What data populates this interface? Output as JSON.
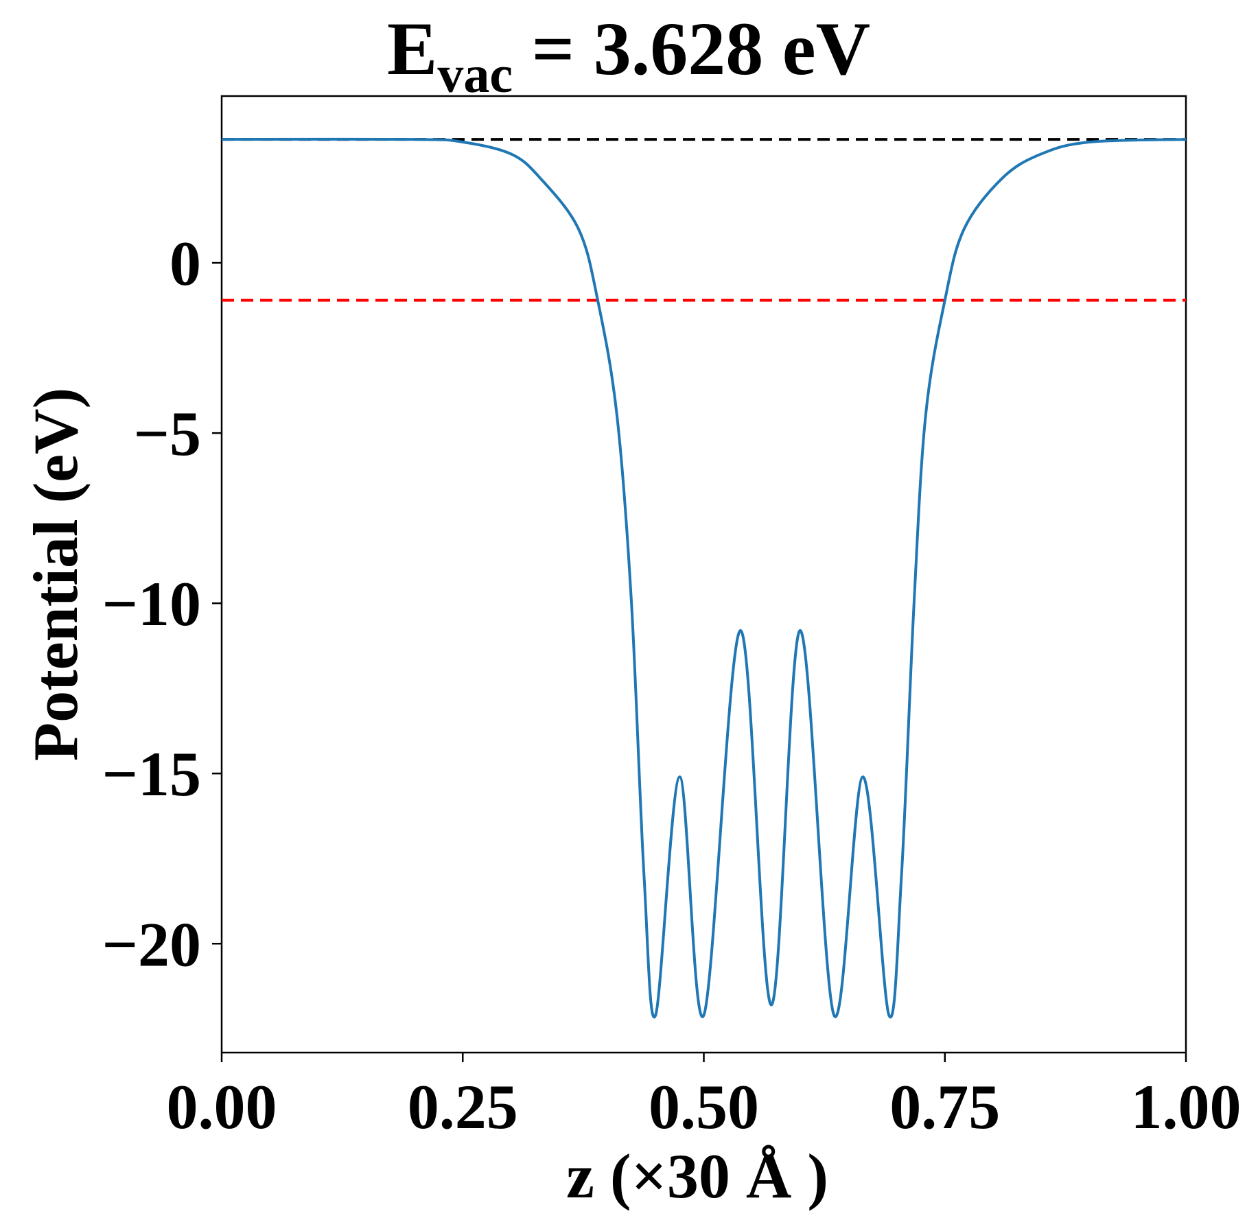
{
  "chart_data": {
    "type": "line",
    "title": {
      "prefix": "E",
      "subscript": "vac",
      "suffix": " = 3.628 eV"
    },
    "xlabel": "z (×30 Å )",
    "ylabel": "Potential (eV)",
    "xlim": [
      0,
      1
    ],
    "ylim": [
      -23.2,
      4.9
    ],
    "x_ticks": [
      {
        "value": 0.0,
        "label": "0.00"
      },
      {
        "value": 0.25,
        "label": "0.25"
      },
      {
        "value": 0.5,
        "label": "0.50"
      },
      {
        "value": 0.75,
        "label": "0.75"
      },
      {
        "value": 1.0,
        "label": "1.00"
      }
    ],
    "y_ticks": [
      {
        "value": 0,
        "label": "0"
      },
      {
        "value": -5,
        "label": "−5"
      },
      {
        "value": -10,
        "label": "−10"
      },
      {
        "value": -15,
        "label": "−15"
      },
      {
        "value": -20,
        "label": "−20"
      }
    ],
    "reference_lines": [
      {
        "name": "vacuum-level",
        "y": 3.628,
        "color": "#000000",
        "style": "dashed"
      },
      {
        "name": "fermi-level",
        "y": -1.1,
        "color": "#ff0000",
        "style": "dashed"
      }
    ],
    "series": [
      {
        "name": "planar-averaged-potential",
        "color": "#1f77b4",
        "points": [
          [
            0.0,
            3.628
          ],
          [
            0.2,
            3.628
          ],
          [
            0.25,
            3.55
          ],
          [
            0.3,
            3.2
          ],
          [
            0.33,
            2.5
          ],
          [
            0.37,
            1.0
          ],
          [
            0.39,
            -1.1
          ],
          [
            0.41,
            -4.5
          ],
          [
            0.425,
            -10.0
          ],
          [
            0.438,
            -18.0
          ],
          [
            0.45,
            -22.1
          ],
          [
            0.475,
            -15.1
          ],
          [
            0.5,
            -22.1
          ],
          [
            0.538,
            -10.8
          ],
          [
            0.57,
            -21.8
          ],
          [
            0.6,
            -10.8
          ],
          [
            0.635,
            -22.1
          ],
          [
            0.665,
            -15.1
          ],
          [
            0.692,
            -22.1
          ],
          [
            0.705,
            -18.0
          ],
          [
            0.718,
            -10.0
          ],
          [
            0.73,
            -4.5
          ],
          [
            0.75,
            -1.1
          ],
          [
            0.77,
            1.0
          ],
          [
            0.81,
            2.5
          ],
          [
            0.85,
            3.2
          ],
          [
            0.9,
            3.55
          ],
          [
            1.0,
            3.628
          ]
        ]
      }
    ]
  }
}
